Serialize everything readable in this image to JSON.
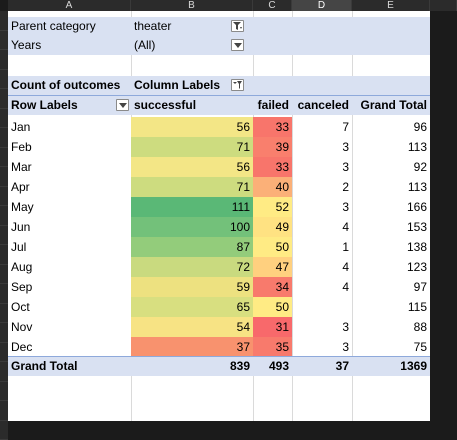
{
  "columns": [
    "A",
    "B",
    "C",
    "D",
    "E"
  ],
  "filters": [
    {
      "label": "Parent category",
      "value": "theater",
      "filtered": true
    },
    {
      "label": "Years",
      "value": "(All)",
      "filtered": false
    }
  ],
  "pivot": {
    "values_label": "Count of outcomes",
    "column_labels": "Column Labels",
    "row_labels": "Row Labels",
    "headers": [
      "successful",
      "failed",
      "canceled",
      "Grand Total"
    ],
    "rows": [
      {
        "month": "Jan",
        "successful": "56",
        "failed": "33",
        "canceled": "7",
        "total": "96"
      },
      {
        "month": "Feb",
        "successful": "71",
        "failed": "39",
        "canceled": "3",
        "total": "113"
      },
      {
        "month": "Mar",
        "successful": "56",
        "failed": "33",
        "canceled": "3",
        "total": "92"
      },
      {
        "month": "Apr",
        "successful": "71",
        "failed": "40",
        "canceled": "2",
        "total": "113"
      },
      {
        "month": "May",
        "successful": "111",
        "failed": "52",
        "canceled": "3",
        "total": "166"
      },
      {
        "month": "Jun",
        "successful": "100",
        "failed": "49",
        "canceled": "4",
        "total": "153"
      },
      {
        "month": "Jul",
        "successful": "87",
        "failed": "50",
        "canceled": "1",
        "total": "138"
      },
      {
        "month": "Aug",
        "successful": "72",
        "failed": "47",
        "canceled": "4",
        "total": "123"
      },
      {
        "month": "Sep",
        "successful": "59",
        "failed": "34",
        "canceled": "4",
        "total": "97"
      },
      {
        "month": "Oct",
        "successful": "65",
        "failed": "50",
        "canceled": "",
        "total": "115"
      },
      {
        "month": "Nov",
        "successful": "54",
        "failed": "31",
        "canceled": "3",
        "total": "88"
      },
      {
        "month": "Dec",
        "successful": "37",
        "failed": "35",
        "canceled": "3",
        "total": "75"
      }
    ],
    "grand_total": {
      "label": "Grand Total",
      "successful": "839",
      "failed": "493",
      "canceled": "37",
      "total": "1369"
    }
  },
  "colors": {
    "successful": [
      "#f3e686",
      "#cddc7f",
      "#f3e686",
      "#cddc7f",
      "#5ab876",
      "#73c17a",
      "#93cc7b",
      "#c9da7f",
      "#ede180",
      "#d8df80",
      "#f7e384",
      "#f8926e"
    ],
    "failed": [
      "#f8756b",
      "#f97f6d",
      "#f8756b",
      "#fbb078",
      "#ffeb84",
      "#ffe282",
      "#ffeb84",
      "#ffd07f",
      "#f87a6c",
      "#ffeb84",
      "#f8696b",
      "#f87a6c"
    ],
    "header_fill": "#d9e1f2"
  }
}
